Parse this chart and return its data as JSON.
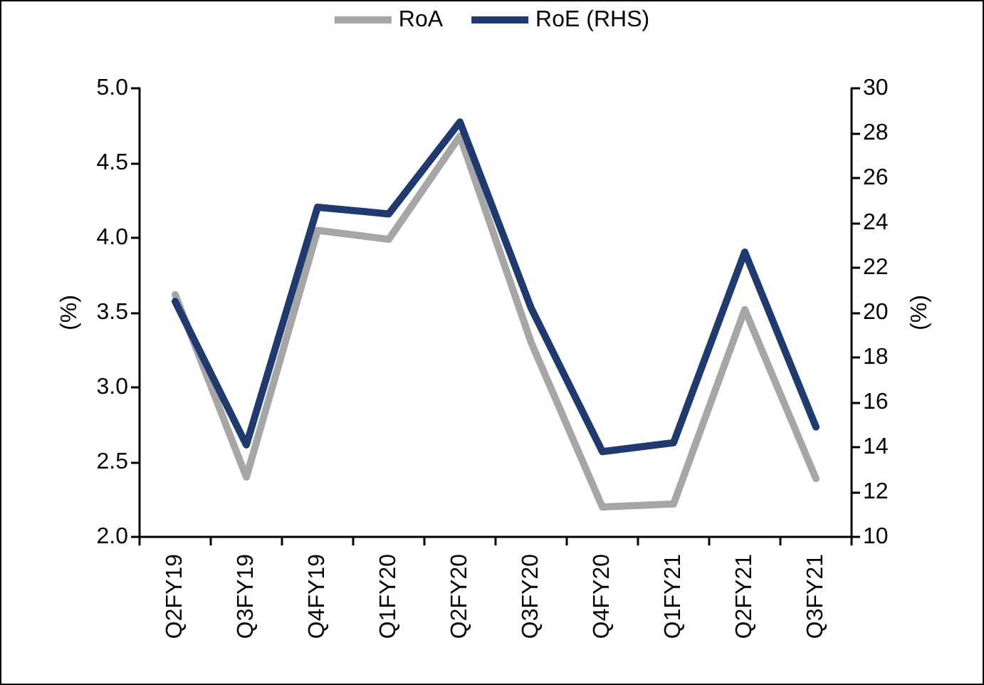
{
  "chart_data": {
    "type": "line",
    "ylabel": "(%)",
    "y2label": "(%)",
    "categories": [
      "Q2FY19",
      "Q3FY19",
      "Q4FY19",
      "Q1FY20",
      "Q2FY20",
      "Q3FY20",
      "Q4FY20",
      "Q1FY21",
      "Q2FY21",
      "Q3FY21"
    ],
    "series": [
      {
        "name": "RoA",
        "color": "#a6a6a6",
        "values": [
          3.62,
          2.4,
          4.05,
          3.99,
          4.68,
          3.3,
          2.2,
          2.22,
          3.52,
          2.39
        ]
      },
      {
        "name": "RoE (RHS)",
        "color": "#1f3a6e",
        "axis": "y2",
        "values": [
          20.5,
          14.1,
          24.7,
          24.4,
          28.5,
          20.2,
          13.8,
          14.2,
          22.7,
          14.9
        ]
      }
    ],
    "ylim": [
      2.0,
      5.0
    ],
    "yticks": [
      {
        "value": 2,
        "label": "2.0"
      },
      {
        "value": 2.5,
        "label": "2.5"
      },
      {
        "value": 3,
        "label": "3.0"
      },
      {
        "value": 3.5,
        "label": "3.5"
      },
      {
        "value": 4,
        "label": "4.0"
      },
      {
        "value": 4.5,
        "label": "4.5"
      },
      {
        "value": 5,
        "label": "5.0"
      }
    ],
    "y2lim": [
      10,
      30
    ],
    "y2ticks": [
      10,
      12,
      14,
      16,
      18,
      20,
      22,
      24,
      26,
      28,
      30
    ],
    "legend": "top",
    "grid": false,
    "marker": "none",
    "line_style": "solid"
  }
}
